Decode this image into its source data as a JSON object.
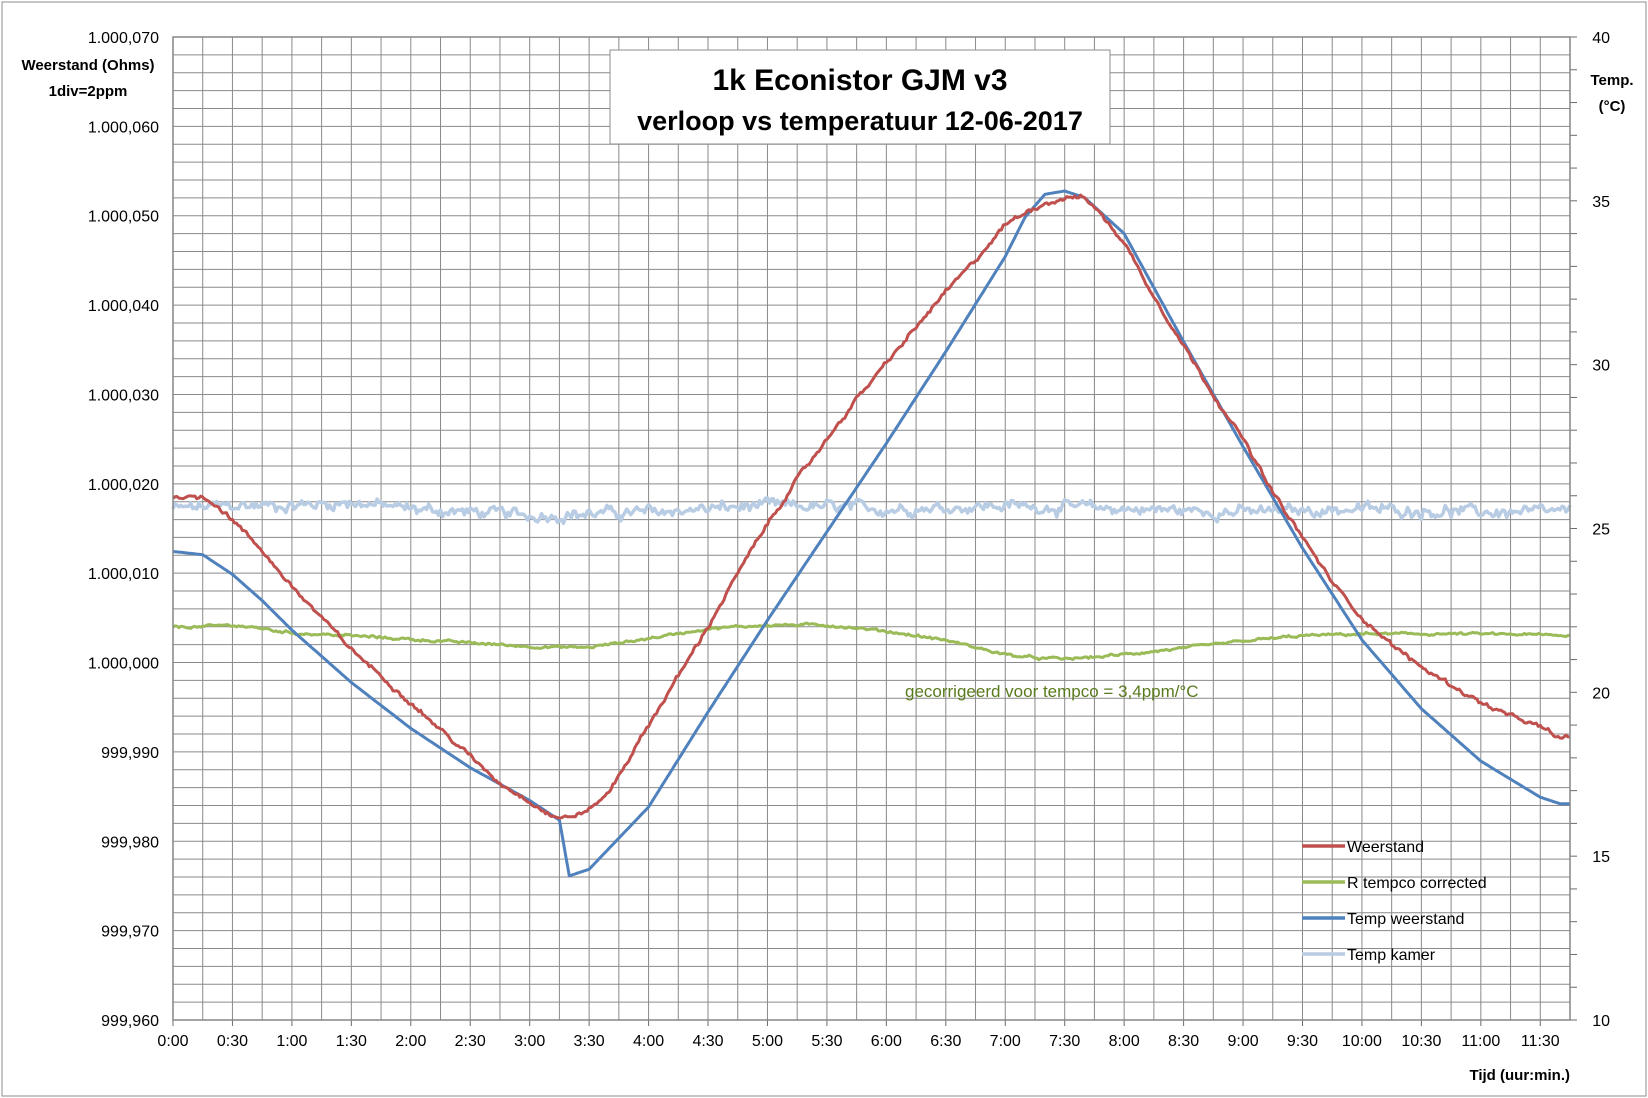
{
  "chart_data": {
    "type": "line",
    "title_line1": "1k Econistor  GJM v3",
    "title_line2": "verloop vs temperatuur 12-06-2017",
    "y_left_label": [
      "Weerstand (Ohms)",
      "1div=2ppm"
    ],
    "y_right_label": [
      "Temp.",
      "(°C)"
    ],
    "x_label": "Tijd (uur:min.)",
    "annotation": "gecorrigeerd voor tempco = 3,4ppm/°C",
    "annotation_color": "#5a7a1e",
    "x_range_minutes": [
      0,
      705
    ],
    "x_ticks": [
      "0:00",
      "0:30",
      "1:00",
      "1:30",
      "2:00",
      "2:30",
      "3:00",
      "3:30",
      "4:00",
      "4:30",
      "5:00",
      "5:30",
      "6:00",
      "6:30",
      "7:00",
      "7:30",
      "8:00",
      "8:30",
      "9:00",
      "9:30",
      "10:00",
      "10:30",
      "11:00",
      "11:30"
    ],
    "y_left_ticks": [
      "1.000,070",
      "1.000,060",
      "1.000,050",
      "1.000,040",
      "1.000,030",
      "1.000,020",
      "1.000,010",
      "1.000,000",
      "999,990",
      "999,980",
      "999,970",
      "999,960"
    ],
    "y_left_range": [
      999.96,
      1000.07
    ],
    "y_right_ticks": [
      "40",
      "35",
      "30",
      "25",
      "20",
      "15",
      "10"
    ],
    "y_right_range": [
      10,
      40
    ],
    "grid": true,
    "legend_position": "bottom-right",
    "series": [
      {
        "name": "Weerstand",
        "axis": "left",
        "color": "#c0504d",
        "noise": 0.00025,
        "x": [
          0,
          15,
          20,
          30,
          45,
          60,
          75,
          90,
          105,
          120,
          135,
          150,
          165,
          180,
          190,
          195,
          200,
          210,
          220,
          240,
          255,
          270,
          285,
          300,
          315,
          330,
          345,
          360,
          375,
          390,
          405,
          420,
          435,
          450,
          455,
          460,
          465,
          480,
          495,
          510,
          525,
          540,
          555,
          570,
          585,
          600,
          615,
          630,
          645,
          660,
          675,
          690,
          700,
          705
        ],
        "y": [
          1000.0186,
          1000.0185,
          1000.018,
          1000.016,
          1000.0125,
          1000.0085,
          1000.005,
          1000.0015,
          999.9985,
          999.9955,
          999.9925,
          999.9895,
          999.9865,
          999.9845,
          999.983,
          999.9826,
          999.9827,
          999.9835,
          999.9855,
          999.993,
          999.9985,
          1000.004,
          1000.01,
          1000.0155,
          1000.0205,
          1000.025,
          1000.0295,
          1000.0335,
          1000.0375,
          1000.0415,
          1000.045,
          1000.049,
          1000.051,
          1000.052,
          1000.0521,
          1000.052,
          1000.051,
          1000.047,
          1000.041,
          1000.0355,
          1000.03,
          1000.025,
          1000.019,
          1000.014,
          1000.009,
          1000.005,
          1000.002,
          999.9995,
          999.9975,
          999.9955,
          999.994,
          999.9928,
          999.9915,
          999.9917
        ]
      },
      {
        "name": "R tempco  corrected",
        "axis": "left",
        "color": "#9bbb59",
        "noise": 0.00015,
        "x": [
          0,
          15,
          30,
          45,
          60,
          90,
          120,
          150,
          180,
          200,
          210,
          240,
          270,
          300,
          330,
          360,
          390,
          420,
          435,
          450,
          465,
          480,
          510,
          540,
          570,
          600,
          630,
          660,
          690,
          705
        ],
        "y": [
          1000.004,
          1000.004,
          1000.0042,
          1000.0038,
          1000.0033,
          1000.003,
          1000.0026,
          1000.0022,
          1000.0018,
          1000.0017,
          1000.0017,
          1000.0027,
          1000.0038,
          1000.0042,
          1000.0042,
          1000.0035,
          1000.0025,
          1000.0009,
          1000.0005,
          1000.0004,
          1000.0006,
          1000.0009,
          1000.0016,
          1000.0024,
          1000.003,
          1000.0032,
          1000.0032,
          1000.0032,
          1000.0031,
          1000.003
        ]
      },
      {
        "name": "Temp weerstand",
        "axis": "right",
        "color": "#4f81bd",
        "noise": 0,
        "x": [
          0,
          15,
          30,
          45,
          60,
          90,
          120,
          150,
          180,
          195,
          200,
          210,
          240,
          270,
          300,
          330,
          360,
          390,
          420,
          430,
          440,
          450,
          460,
          480,
          510,
          540,
          570,
          600,
          630,
          660,
          690,
          700,
          705
        ],
        "y": [
          24.3,
          24.2,
          23.6,
          22.8,
          21.9,
          20.3,
          18.9,
          17.7,
          16.7,
          16.1,
          14.4,
          14.6,
          16.5,
          19.4,
          22.2,
          24.9,
          27.6,
          30.4,
          33.3,
          34.5,
          35.2,
          35.3,
          35.1,
          34.0,
          30.7,
          27.5,
          24.4,
          21.6,
          19.5,
          17.9,
          16.8,
          16.6,
          16.6
        ]
      },
      {
        "name": "Temp kamer",
        "axis": "right",
        "color": "#b8cce4",
        "noise": 0.18,
        "x": [
          0,
          30,
          60,
          90,
          120,
          180,
          240,
          300,
          360,
          420,
          480,
          540,
          600,
          660,
          705
        ],
        "y": [
          25.6,
          25.7,
          25.7,
          25.8,
          25.6,
          25.4,
          25.5,
          25.7,
          25.6,
          25.7,
          25.6,
          25.5,
          25.6,
          25.5,
          25.5
        ]
      }
    ]
  }
}
